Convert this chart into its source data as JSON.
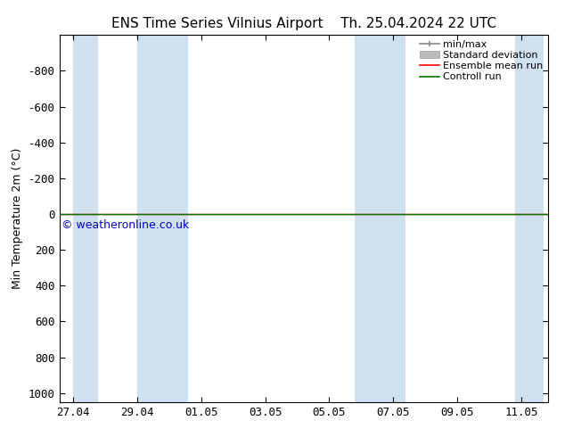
{
  "title_left": "ENS Time Series Vilnius Airport",
  "title_right": "Th. 25.04.2024 22 UTC",
  "ylabel": "Min Temperature 2m (°C)",
  "ylim_top": -1000,
  "ylim_bottom": 1050,
  "yticks": [
    -800,
    -600,
    -400,
    -200,
    0,
    200,
    400,
    600,
    800,
    1000
  ],
  "background_color": "#ffffff",
  "shade_color": "#cfe0f0",
  "shade_bands": [
    [
      0.0,
      0.57
    ],
    [
      1.43,
      2.57
    ],
    [
      6.29,
      7.43
    ],
    [
      9.86,
      10.5
    ]
  ],
  "xtick_labels": [
    "27.04",
    "29.04",
    "01.05",
    "03.05",
    "05.05",
    "07.05",
    "09.05",
    "11.05"
  ],
  "xtick_positions": [
    0.0,
    1.43,
    2.86,
    4.29,
    5.71,
    7.14,
    8.57,
    10.0
  ],
  "xlim": [
    -0.3,
    10.6
  ],
  "control_run_y": 0.0,
  "control_run_color": "#007700",
  "ensemble_mean_color": "#ff0000",
  "minmax_color": "#888888",
  "stddev_color": "#bbbbbb",
  "watermark": "© weatheronline.co.uk",
  "watermark_color": "#0000cc",
  "legend_entries": [
    "min/max",
    "Standard deviation",
    "Ensemble mean run",
    "Controll run"
  ],
  "legend_colors": [
    "#888888",
    "#bbbbbb",
    "#ff0000",
    "#007700"
  ]
}
